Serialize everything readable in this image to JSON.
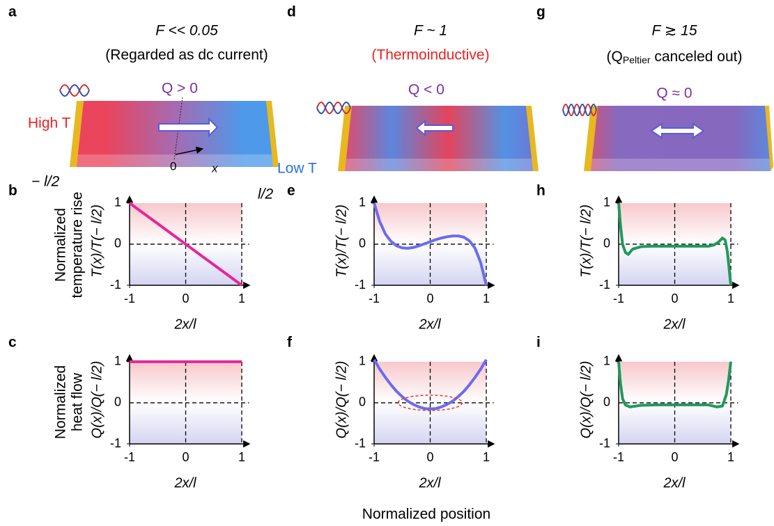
{
  "panel_labels": [
    "a",
    "b",
    "c",
    "d",
    "e",
    "f",
    "g",
    "h",
    "i"
  ],
  "illustrations": [
    {
      "title": "F << 0.05",
      "subtitle": "(Regarded as dc current)",
      "heat": "Q > 0"
    },
    {
      "title": "F ~ 1",
      "subtitle": "(Thermoinductive)",
      "heat": "Q < 0"
    },
    {
      "title": "F ≳ 15",
      "subtitle_parts": [
        "(Q",
        "Peltier",
        " canceled out)"
      ],
      "heat": "Q ≈ 0"
    }
  ],
  "bar_labels": {
    "high": "High T",
    "low": "Low T",
    "left_end": "− l/2",
    "origin": "0",
    "x": "x",
    "right_end": "l/2"
  },
  "row_labels": [
    [
      "Normalized",
      "temperature rise"
    ],
    [
      "Normalized",
      "heat flow"
    ]
  ],
  "footer": "Normalized position",
  "chart_data": [
    {
      "type": "line",
      "panel": "b",
      "xlabel": "2x/l",
      "ylabel": "T(x)/T(− l/2)",
      "color": "#e8259a",
      "x": [
        -1,
        -0.5,
        0,
        0.5,
        1
      ],
      "values": [
        1,
        0.5,
        0,
        -0.5,
        -1
      ],
      "xlim": [
        -1,
        1.13
      ],
      "ylim": [
        -1,
        1.15
      ],
      "xticks": [
        -1,
        0,
        1
      ],
      "yticks": [
        -1,
        0,
        1
      ]
    },
    {
      "type": "line",
      "panel": "c",
      "xlabel": "2x/l",
      "ylabel": "Q(x)/Q(− l/2)",
      "color": "#e8259a",
      "x": [
        -1,
        0,
        1
      ],
      "values": [
        1,
        1,
        1
      ],
      "xlim": [
        -1,
        1.13
      ],
      "ylim": [
        -1,
        1.15
      ],
      "xticks": [
        -1,
        0,
        1
      ],
      "yticks": [
        -1,
        0,
        1
      ]
    },
    {
      "type": "line",
      "panel": "e",
      "xlabel": "2x/l",
      "ylabel": "T(x)/T(− l/2)",
      "color": "#6b6bf0",
      "x": [
        -1,
        -0.9,
        -0.8,
        -0.7,
        -0.6,
        -0.5,
        -0.4,
        -0.3,
        -0.2,
        -0.1,
        0,
        0.1,
        0.2,
        0.3,
        0.4,
        0.5,
        0.6,
        0.7,
        0.8,
        0.9,
        1
      ],
      "values": [
        1,
        0.55,
        0.25,
        0.07,
        -0.04,
        -0.09,
        -0.1,
        -0.08,
        -0.04,
        0.01,
        0.06,
        0.11,
        0.15,
        0.18,
        0.2,
        0.2,
        0.17,
        0.08,
        -0.1,
        -0.45,
        -1
      ],
      "xlim": [
        -1,
        1.13
      ],
      "ylim": [
        -1,
        1.15
      ],
      "xticks": [
        -1,
        0,
        1
      ],
      "yticks": [
        -1,
        0,
        1
      ]
    },
    {
      "type": "line",
      "panel": "f",
      "xlabel": "2x/l",
      "ylabel": "Q(x)/Q(− l/2)",
      "color": "#6b6bf0",
      "x": [
        -1,
        -0.9,
        -0.8,
        -0.7,
        -0.6,
        -0.5,
        -0.4,
        -0.3,
        -0.2,
        -0.1,
        0,
        0.1,
        0.2,
        0.3,
        0.4,
        0.5,
        0.6,
        0.7,
        0.8,
        0.9,
        1
      ],
      "values": [
        1.05,
        0.82,
        0.62,
        0.44,
        0.28,
        0.15,
        0.04,
        -0.04,
        -0.1,
        -0.14,
        -0.15,
        -0.14,
        -0.1,
        -0.04,
        0.04,
        0.15,
        0.28,
        0.44,
        0.62,
        0.82,
        1.05
      ],
      "xlim": [
        -1,
        1.13
      ],
      "ylim": [
        -1,
        1.15
      ],
      "xticks": [
        -1,
        0,
        1
      ],
      "yticks": [
        -1,
        0,
        1
      ]
    },
    {
      "type": "line",
      "panel": "h",
      "xlabel": "2x/l",
      "ylabel": "T(x)/T(− l/2)",
      "color": "#1e9a5a",
      "x": [
        -1,
        -0.97,
        -0.93,
        -0.88,
        -0.83,
        -0.75,
        -0.6,
        -0.4,
        -0.2,
        0,
        0.2,
        0.4,
        0.6,
        0.7,
        0.78,
        0.85,
        0.9,
        0.94,
        0.97,
        1
      ],
      "values": [
        1,
        0.5,
        0,
        -0.2,
        -0.25,
        -0.12,
        -0.06,
        -0.05,
        -0.05,
        -0.05,
        -0.05,
        -0.05,
        -0.05,
        -0.02,
        0.05,
        0.15,
        0.1,
        -0.2,
        -0.6,
        -1
      ],
      "xlim": [
        -1,
        1.13
      ],
      "ylim": [
        -1,
        1.15
      ],
      "xticks": [
        -1,
        0,
        1
      ],
      "yticks": [
        -1,
        0,
        1
      ]
    },
    {
      "type": "line",
      "panel": "i",
      "xlabel": "2x/l",
      "ylabel": "Q(x)/Q(− l/2)",
      "color": "#1e9a5a",
      "x": [
        -1,
        -0.97,
        -0.93,
        -0.88,
        -0.8,
        -0.6,
        -0.3,
        0,
        0.3,
        0.6,
        0.75,
        0.85,
        0.92,
        0.96,
        1
      ],
      "values": [
        1,
        0.5,
        0.1,
        -0.05,
        -0.1,
        -0.06,
        -0.05,
        -0.05,
        -0.05,
        -0.05,
        -0.1,
        -0.08,
        0.2,
        0.55,
        1
      ],
      "xlim": [
        -1,
        1.13
      ],
      "ylim": [
        -1,
        1.15
      ],
      "xticks": [
        -1,
        0,
        1
      ],
      "yticks": [
        -1,
        0,
        1
      ]
    }
  ]
}
